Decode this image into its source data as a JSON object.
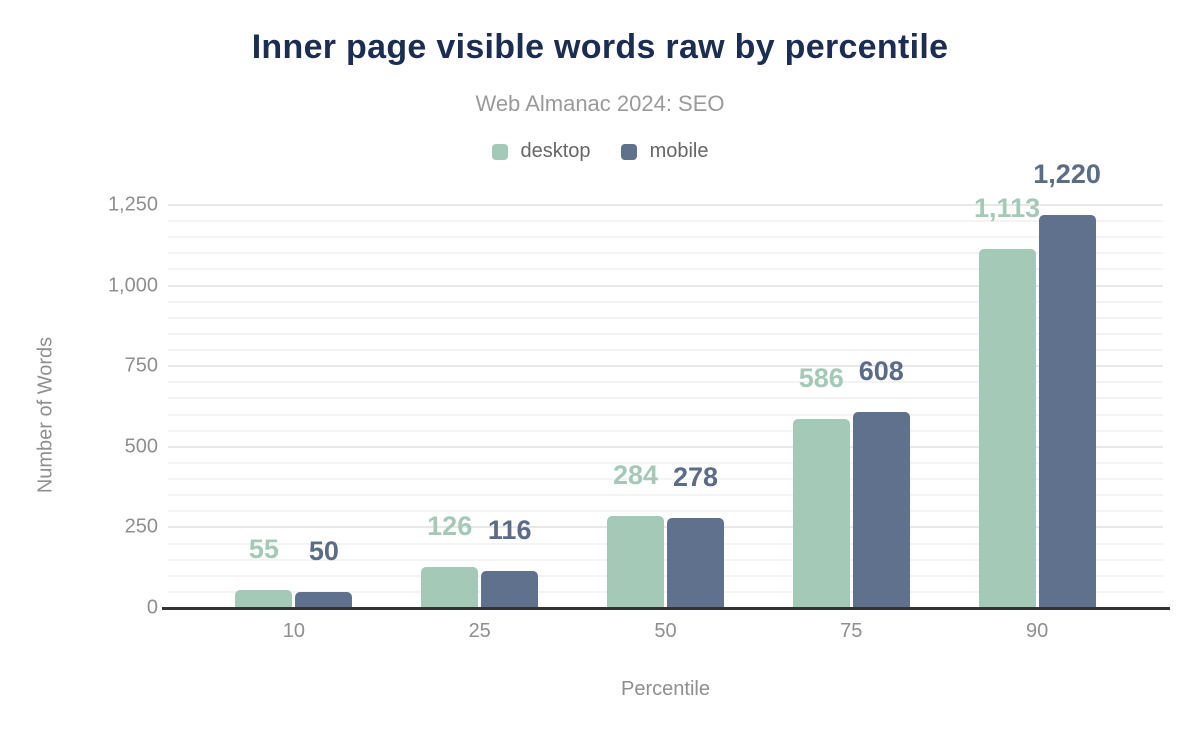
{
  "chart_data": {
    "type": "bar",
    "title": "Inner page visible words raw by percentile",
    "subtitle": "Web Almanac 2024: SEO",
    "xlabel": "Percentile",
    "ylabel": "Number of Words",
    "categories": [
      "10",
      "25",
      "50",
      "75",
      "90"
    ],
    "series": [
      {
        "name": "desktop",
        "color": "#a5c9b7",
        "label_color": "#a5c9b7",
        "values": [
          55,
          126,
          284,
          586,
          1113
        ],
        "labels": [
          "55",
          "126",
          "284",
          "586",
          "1,113"
        ]
      },
      {
        "name": "mobile",
        "color": "#5f718c",
        "label_color": "#5a6c88",
        "values": [
          50,
          116,
          278,
          608,
          1220
        ],
        "labels": [
          "50",
          "116",
          "278",
          "608",
          "1,220"
        ]
      }
    ],
    "ylim": [
      0,
      1250
    ],
    "yticks": [
      {
        "value": 0,
        "label": "0"
      },
      {
        "value": 250,
        "label": "250"
      },
      {
        "value": 500,
        "label": "500"
      },
      {
        "value": 750,
        "label": "750"
      },
      {
        "value": 1000,
        "label": "1,000"
      },
      {
        "value": 1250,
        "label": "1,250"
      }
    ],
    "grid": {
      "minor_step": 50,
      "major_step": 250,
      "on": true
    },
    "legend_position": "top",
    "colors": {
      "title": "#1c2d54",
      "subtitle": "#9a9a9a",
      "axis_text": "#8f8f8f",
      "legend_text": "#666666",
      "axis_line": "#333333"
    }
  }
}
